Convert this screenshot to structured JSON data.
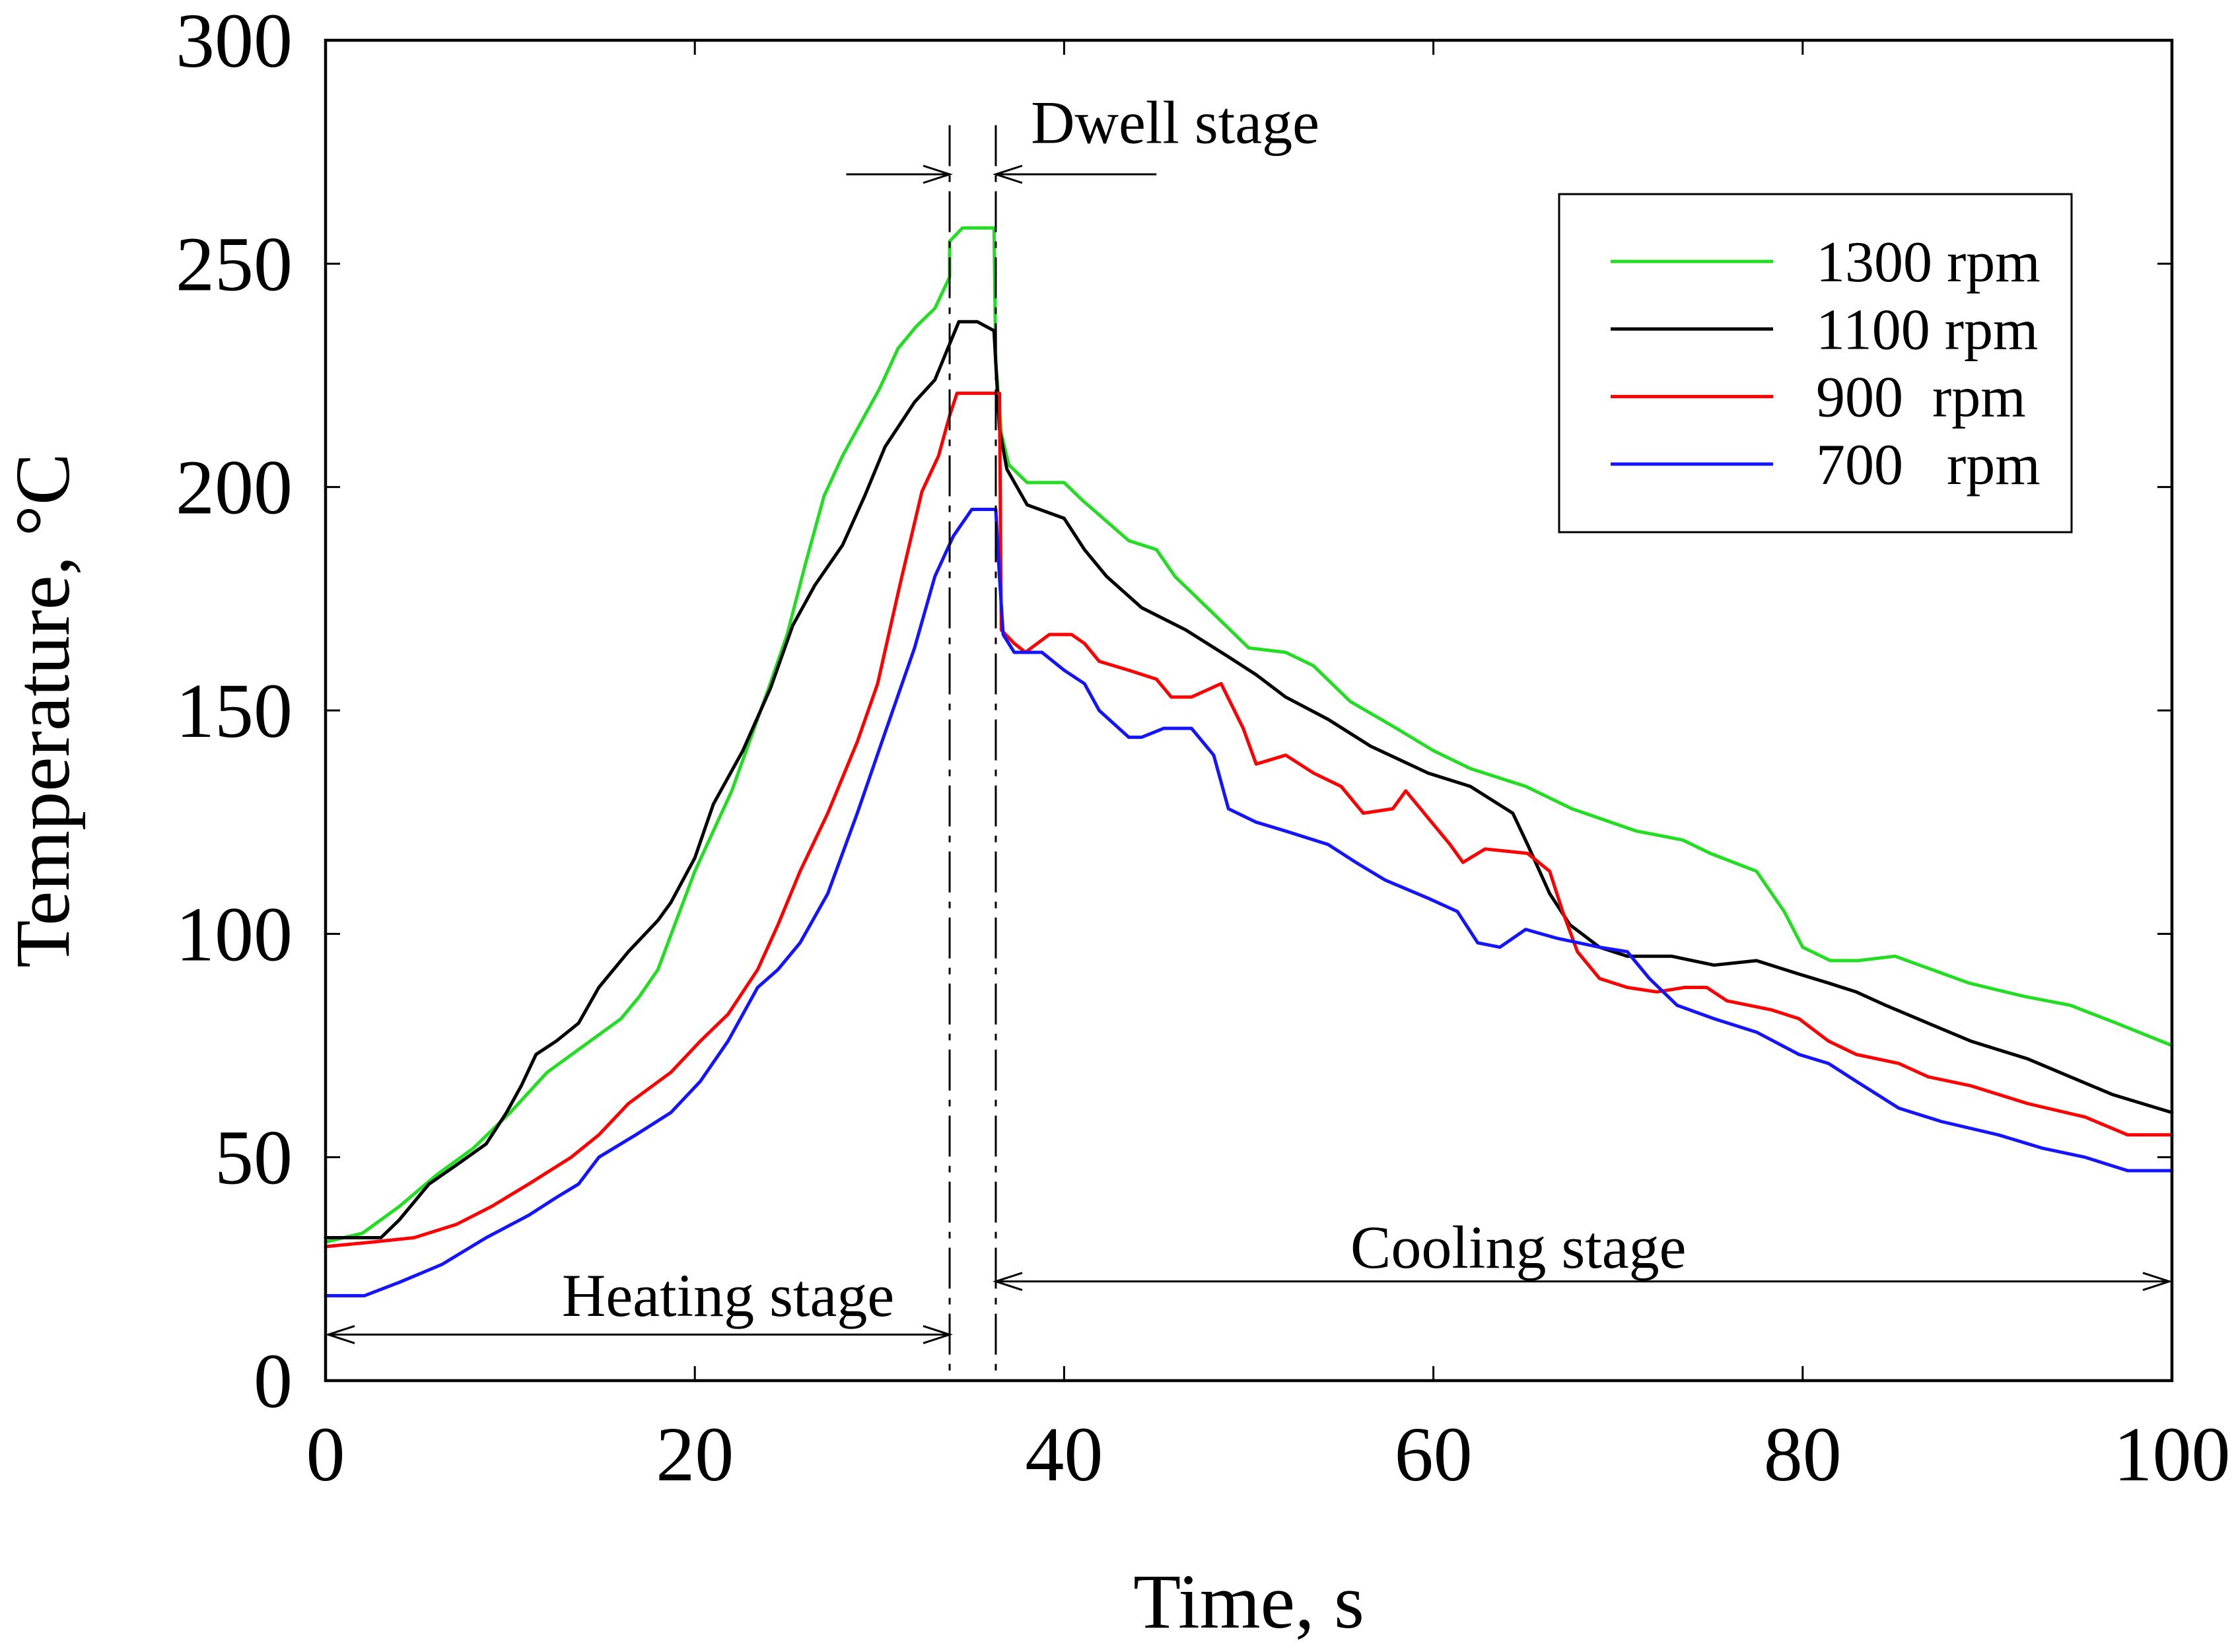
{
  "chart_data": {
    "type": "line",
    "xlabel": "Time, s",
    "ylabel": "Temperature, °C",
    "xlim": [
      0,
      100
    ],
    "ylim": [
      0,
      300
    ],
    "xticks": [
      0,
      20,
      40,
      60,
      80,
      100
    ],
    "yticks": [
      0,
      50,
      100,
      150,
      200,
      250,
      300
    ],
    "grid": false,
    "legend": "top-right",
    "stage_boundaries": [
      33.8,
      36.3
    ],
    "annotations": {
      "dwell": "Dwell stage",
      "heating": "Heating stage",
      "cooling": "Cooling stage"
    },
    "series": [
      {
        "name": "1300 rpm",
        "color": "#22dd22",
        "x": [
          0,
          2,
          4,
          6,
          8,
          10,
          12,
          14,
          16,
          17,
          18,
          19,
          20,
          22,
          24,
          25,
          26,
          27,
          28,
          30,
          31,
          32,
          33,
          33.8,
          33.8,
          34.5,
          36.2,
          36.3,
          36.6,
          37,
          38,
          40,
          41,
          43.5,
          45,
          46,
          48,
          50,
          52,
          53.5,
          55.5,
          58,
          60,
          62,
          65,
          67.5,
          71,
          73.5,
          75,
          77.5,
          79,
          80,
          81.5,
          83,
          85,
          87,
          89,
          92,
          94.5,
          97,
          100
        ],
        "values": [
          31,
          33,
          39,
          46,
          52,
          60,
          69,
          75,
          81,
          86,
          92,
          103,
          114,
          132,
          155,
          167,
          183,
          198,
          207,
          222,
          231,
          236,
          240,
          247,
          255,
          258,
          258,
          228,
          212,
          205,
          201,
          201,
          197,
          188,
          186,
          180,
          172,
          164,
          163,
          160,
          152,
          146,
          141,
          137,
          133,
          128,
          123,
          121,
          118,
          114,
          105,
          97,
          94,
          94,
          95,
          92,
          89,
          86,
          84,
          80,
          75
        ]
      },
      {
        "name": "1100 rpm",
        "color": "#000000",
        "x": [
          0,
          3,
          4,
          5.6,
          7,
          8.7,
          9.8,
          10.6,
          11.4,
          12.5,
          13.7,
          14.8,
          16.4,
          18,
          18.7,
          20,
          21,
          22.6,
          24.1,
          25.3,
          26.5,
          28,
          29.2,
          30.3,
          31.9,
          33,
          33.8,
          34.3,
          35.3,
          36.2,
          36.5,
          36.9,
          38,
          40,
          41.1,
          42.3,
          44.2,
          46.6,
          48.9,
          50.4,
          52,
          54.3,
          56.6,
          59.7,
          62,
          64.3,
          65.1,
          66.3,
          67.4,
          69,
          70.5,
          72.9,
          75.2,
          77.5,
          79.8,
          81.4,
          82.9,
          84.5,
          86.8,
          89.1,
          92.2,
          94.5,
          96.8,
          100
        ],
        "values": [
          32,
          32,
          36,
          44,
          48,
          53,
          60,
          66,
          73,
          76,
          80,
          88,
          96,
          103,
          107,
          117,
          129,
          141,
          155,
          169,
          178,
          187,
          198,
          209,
          219,
          224,
          232,
          237,
          237,
          235,
          213,
          204,
          196,
          193,
          186,
          180,
          173,
          168,
          162,
          158,
          153,
          148,
          142,
          136,
          133,
          127,
          120,
          109,
          102,
          97,
          95,
          95,
          93,
          94,
          91,
          89,
          87,
          84,
          80,
          76,
          72,
          68,
          64,
          60
        ]
      },
      {
        "name": "900  rpm",
        "color": "#ff0000",
        "x": [
          0,
          2.5,
          4.8,
          7.1,
          9,
          11,
          13.3,
          14.8,
          16.4,
          18.7,
          20.3,
          21.8,
          23.4,
          24.5,
          25.7,
          27.2,
          28.8,
          29.9,
          31.1,
          32.3,
          33.2,
          33.8,
          34.2,
          36.5,
          36.6,
          37.3,
          37.9,
          39.2,
          40.4,
          41.1,
          41.9,
          43.5,
          45,
          45.8,
          46.9,
          48.5,
          49.7,
          50.4,
          52,
          53.5,
          55,
          56.2,
          57.8,
          58.5,
          59.7,
          60.9,
          61.6,
          62.8,
          65.1,
          66.3,
          67,
          67.8,
          69,
          70.5,
          72.1,
          73.6,
          74.8,
          75.9,
          78.3,
          79.8,
          81.4,
          82.9,
          85.2,
          86.8,
          89.1,
          92.2,
          95.3,
          97.6,
          100
        ],
        "values": [
          30,
          31,
          32,
          35,
          39,
          44,
          50,
          55,
          62,
          69,
          76,
          82,
          92,
          102,
          114,
          127,
          143,
          156,
          178,
          199,
          207,
          216,
          221,
          221,
          168,
          165,
          163,
          167,
          167,
          165,
          161,
          159,
          157,
          153,
          153,
          156,
          146,
          138,
          140,
          136,
          133,
          127,
          128,
          132,
          126,
          120,
          116,
          119,
          118,
          114,
          105,
          96,
          90,
          88,
          87,
          88,
          88,
          85,
          83,
          81,
          76,
          73,
          71,
          68,
          66,
          62,
          59,
          55,
          55
        ]
      },
      {
        "name": "700   rpm",
        "color": "#1414ff",
        "x": [
          0,
          2.1,
          4,
          6.3,
          8.7,
          11,
          12.5,
          13.7,
          14.8,
          16.8,
          18.7,
          20.3,
          21.8,
          23.4,
          24.5,
          25.7,
          27.2,
          28.8,
          30.3,
          31.9,
          33,
          34,
          35,
          36.3,
          36.5,
          36.7,
          37.3,
          38.8,
          40,
          41.1,
          41.9,
          43.5,
          44.2,
          45.4,
          46.9,
          48.1,
          48.9,
          50.4,
          52,
          54.3,
          55.8,
          57.4,
          59.7,
          61.3,
          62.4,
          63.6,
          65,
          66.7,
          69,
          70.5,
          71.7,
          73.2,
          75.2,
          77.5,
          79.8,
          81.4,
          82.9,
          85.2,
          87.5,
          90.6,
          93,
          95.3,
          97.6,
          100
        ],
        "values": [
          19,
          19,
          22,
          26,
          32,
          37,
          41,
          44,
          50,
          55,
          60,
          67,
          76,
          88,
          92,
          98,
          109,
          127,
          145,
          164,
          180,
          189,
          195,
          195,
          180,
          167,
          163,
          163,
          159,
          156,
          150,
          144,
          144,
          146,
          146,
          140,
          128,
          125,
          123,
          120,
          116,
          112,
          108,
          105,
          98,
          97,
          101,
          99,
          97,
          96,
          90,
          84,
          81,
          78,
          73,
          71,
          67,
          61,
          58,
          55,
          52,
          50,
          47,
          47
        ]
      }
    ]
  }
}
